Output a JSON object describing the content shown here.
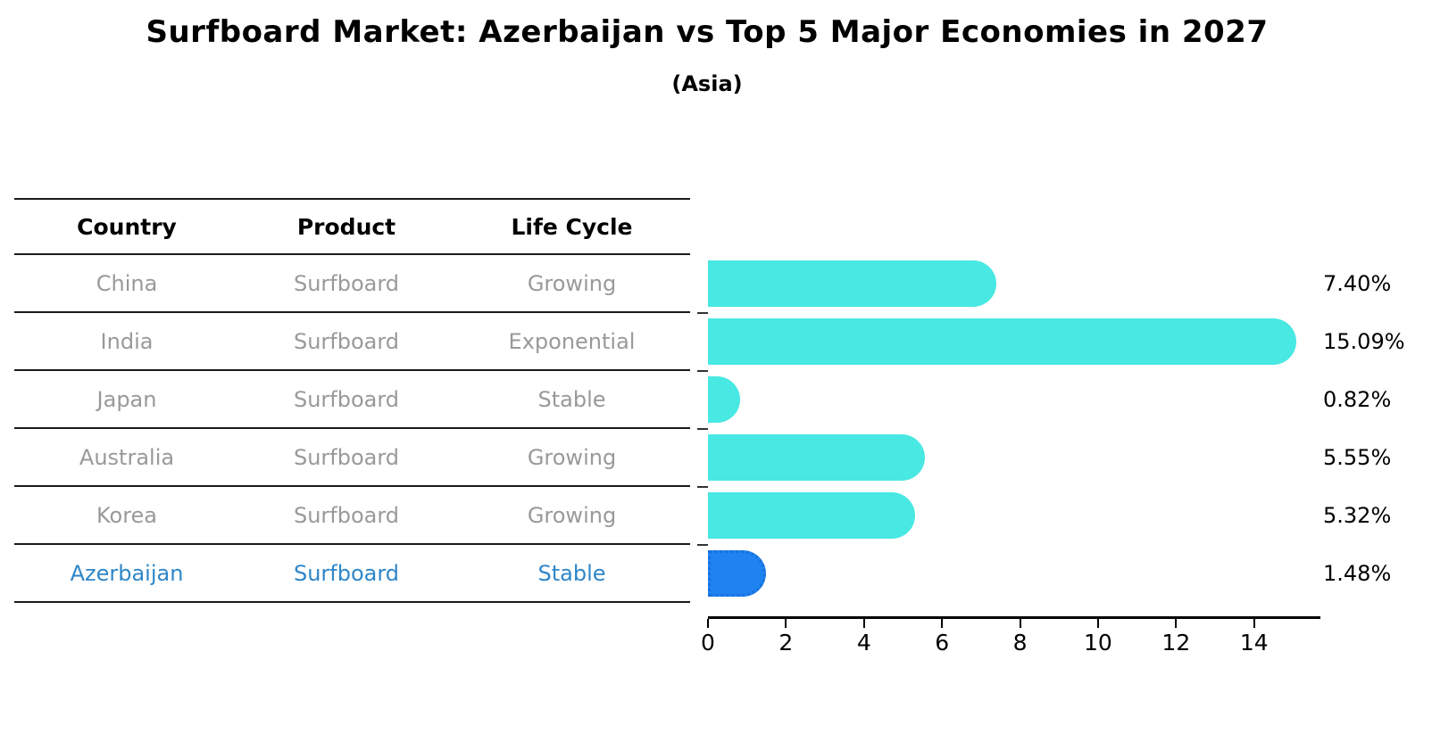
{
  "title": "Surfboard Market: Azerbaijan vs Top 5 Major Economies in 2027",
  "subtitle": "(Asia)",
  "table": {
    "headers": [
      "Country",
      "Product",
      "Life Cycle"
    ],
    "rows": [
      {
        "country": "China",
        "product": "Surfboard",
        "life_cycle": "Growing",
        "value_label": "7.40%"
      },
      {
        "country": "India",
        "product": "Surfboard",
        "life_cycle": "Exponential",
        "value_label": "15.09%"
      },
      {
        "country": "Japan",
        "product": "Surfboard",
        "life_cycle": "Stable",
        "value_label": "0.82%"
      },
      {
        "country": "Australia",
        "product": "Surfboard",
        "life_cycle": "Growing",
        "value_label": "5.55%"
      },
      {
        "country": "Korea",
        "product": "Surfboard",
        "life_cycle": "Growing",
        "value_label": "5.32%"
      },
      {
        "country": "Azerbaijan",
        "product": "Surfboard",
        "life_cycle": "Stable",
        "value_label": "1.48%"
      }
    ]
  },
  "chart_data": {
    "type": "bar",
    "orientation": "horizontal",
    "title": "Surfboard Market: Azerbaijan vs Top 5 Major Economies in 2027",
    "subtitle": "(Asia)",
    "categories": [
      "China",
      "India",
      "Japan",
      "Australia",
      "Korea",
      "Azerbaijan"
    ],
    "values": [
      7.4,
      15.09,
      0.82,
      5.55,
      5.32,
      1.48
    ],
    "value_labels": [
      "7.40%",
      "15.09%",
      "0.82%",
      "5.55%",
      "5.32%",
      "1.48%"
    ],
    "highlight_index": 5,
    "xlabel": "",
    "ylabel": "",
    "xlim": [
      0,
      15.7
    ],
    "xticks": [
      0,
      2,
      4,
      6,
      8,
      10,
      12,
      14
    ],
    "grid": false,
    "legend": "none"
  },
  "colors": {
    "bar": "#48E8E3",
    "highlight_bar": "#1E82F0",
    "highlight_border": "#1871DC",
    "row_text": "#999999",
    "highlight_text": "#2E86C8",
    "line": "#1a1a1a"
  }
}
